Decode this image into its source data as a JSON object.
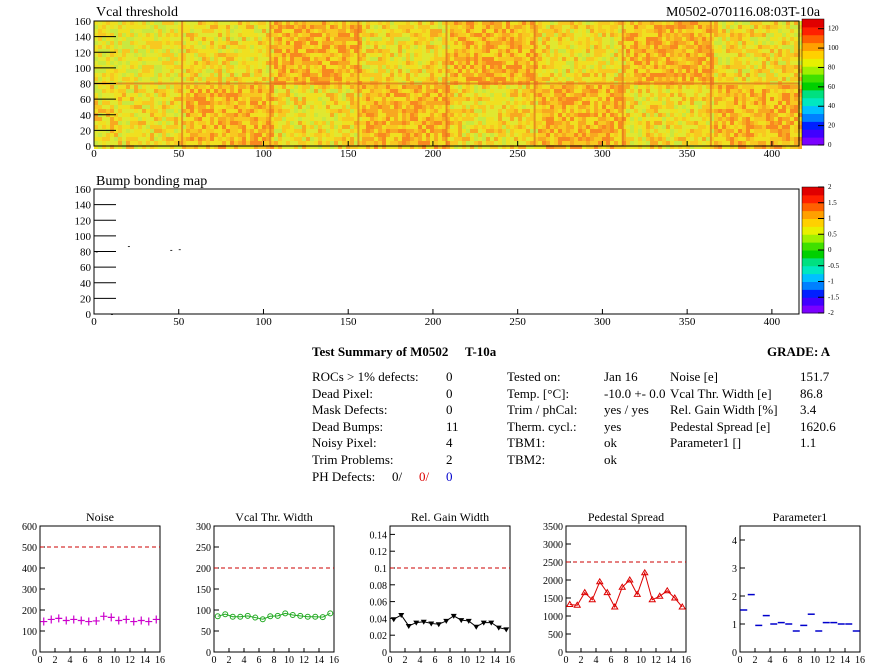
{
  "header": {
    "title": "Vcal threshold",
    "module": "M0502-070116.08:03T-10a"
  },
  "colors": {
    "palette": [
      "#7b00ff",
      "#4000ff",
      "#0020ff",
      "#0080ff",
      "#00c0ff",
      "#00e8c0",
      "#00e080",
      "#00d000",
      "#40e000",
      "#a0f000",
      "#e8f000",
      "#ffd000",
      "#ffa000",
      "#ff6000",
      "#ff2000",
      "#e00000"
    ],
    "noise": "#cc00cc",
    "vcal": "#22aa22",
    "gain": "#000000",
    "pedestal": "#dd0000",
    "param1": "#0000cc",
    "ref_line": "#cc0000"
  },
  "maps": [
    {
      "title": "Vcal threshold",
      "xlim": [
        0,
        416
      ],
      "ylim": [
        0,
        160
      ],
      "xticks": [
        "0",
        "50",
        "100",
        "150",
        "200",
        "250",
        "300",
        "350",
        "400"
      ],
      "yticks": [
        "0",
        "20",
        "40",
        "60",
        "80",
        "100",
        "120",
        "140",
        "160"
      ],
      "zticks": [
        "0",
        "20",
        "40",
        "60",
        "80",
        "100",
        "120"
      ],
      "zlim": [
        0,
        130
      ]
    },
    {
      "title": "Bump bonding map",
      "xlim": [
        0,
        416
      ],
      "ylim": [
        0,
        160
      ],
      "xticks": [
        "0",
        "50",
        "100",
        "150",
        "200",
        "250",
        "300",
        "350",
        "400"
      ],
      "yticks": [
        "0",
        "20",
        "40",
        "60",
        "80",
        "100",
        "120",
        "140",
        "160"
      ],
      "zticks": [
        "-2",
        "-1.5",
        "-1",
        "-0.5",
        "0",
        "0.5",
        "1",
        "1.5",
        "2"
      ],
      "zlim": [
        -2,
        2
      ]
    }
  ],
  "summary": {
    "title": "Test Summary of M0502",
    "subtitle": "T-10a",
    "grade": "GRADE:  A",
    "left": [
      {
        "label": "ROCs > 1% defects:",
        "value": "0"
      },
      {
        "label": "Dead Pixel:",
        "value": "0"
      },
      {
        "label": "Mask Defects:",
        "value": "0"
      },
      {
        "label": "Dead Bumps:",
        "value": "11"
      },
      {
        "label": "Noisy Pixel:",
        "value": "4"
      },
      {
        "label": "Trim Problems:",
        "value": "2"
      }
    ],
    "ph_defects": {
      "label": "PH Defects:",
      "v1": "0/",
      "v2": "0/",
      "v3": "0"
    },
    "middle": [
      {
        "label": "Tested on:",
        "value": "Jan 16"
      },
      {
        "label": "Temp. [°C]:",
        "value": "-10.0 +- 0.0"
      },
      {
        "label": "Trim / phCal:",
        "value": "yes / yes"
      },
      {
        "label": "Therm. cycl.:",
        "value": "yes"
      },
      {
        "label": "TBM1:",
        "value": "ok"
      },
      {
        "label": "TBM2:",
        "value": "ok"
      }
    ],
    "right": [
      {
        "label": "Noise [e]",
        "value": "151.7"
      },
      {
        "label": "Vcal Thr. Width [e]",
        "value": "86.8"
      },
      {
        "label": "Rel. Gain Width [%]",
        "value": "3.4"
      },
      {
        "label": "Pedestal Spread [e]",
        "value": "1620.6"
      },
      {
        "label": "Parameter1 []",
        "value": "1.1"
      }
    ]
  },
  "chart_data": [
    {
      "type": "scatter",
      "title": "Noise",
      "x": [
        0,
        1,
        2,
        3,
        4,
        5,
        6,
        7,
        8,
        9,
        10,
        11,
        12,
        13,
        14,
        15
      ],
      "values": [
        145,
        155,
        160,
        150,
        155,
        150,
        145,
        148,
        170,
        165,
        150,
        155,
        145,
        150,
        145,
        155
      ],
      "ylim": [
        0,
        600
      ],
      "xlim": [
        0,
        16
      ],
      "yticks": [
        "0",
        "100",
        "200",
        "300",
        "400",
        "500",
        "600"
      ],
      "xticks": [
        "0",
        "2",
        "4",
        "6",
        "8",
        "10",
        "12",
        "14",
        "16"
      ],
      "reference": 500,
      "marker": "cross"
    },
    {
      "type": "line",
      "title": "Vcal Thr. Width",
      "x": [
        0,
        1,
        2,
        3,
        4,
        5,
        6,
        7,
        8,
        9,
        10,
        11,
        12,
        13,
        14,
        15
      ],
      "values": [
        85,
        90,
        84,
        84,
        86,
        82,
        78,
        85,
        86,
        92,
        88,
        86,
        84,
        84,
        83,
        92
      ],
      "ylim": [
        0,
        300
      ],
      "xlim": [
        0,
        16
      ],
      "yticks": [
        "0",
        "50",
        "100",
        "150",
        "200",
        "250",
        "300"
      ],
      "xticks": [
        "0",
        "2",
        "4",
        "6",
        "8",
        "10",
        "12",
        "14",
        "16"
      ],
      "reference": 200,
      "marker": "circle"
    },
    {
      "type": "line",
      "title": "Rel. Gain Width",
      "x": [
        0,
        1,
        2,
        3,
        4,
        5,
        6,
        7,
        8,
        9,
        10,
        11,
        12,
        13,
        14,
        15
      ],
      "values": [
        0.039,
        0.044,
        0.031,
        0.035,
        0.036,
        0.034,
        0.033,
        0.037,
        0.043,
        0.038,
        0.037,
        0.03,
        0.035,
        0.035,
        0.029,
        0.027
      ],
      "ylim": [
        0,
        0.15
      ],
      "xlim": [
        0,
        16
      ],
      "yticks": [
        "0",
        "0.02",
        "0.04",
        "0.06",
        "0.08",
        "0.1",
        "0.12",
        "0.14"
      ],
      "xticks": [
        "0",
        "2",
        "4",
        "6",
        "8",
        "10",
        "12",
        "14",
        "16"
      ],
      "reference": 0.1,
      "marker": "tri-down"
    },
    {
      "type": "line",
      "title": "Pedestal Spread",
      "x": [
        0,
        1,
        2,
        3,
        4,
        5,
        6,
        7,
        8,
        9,
        10,
        11,
        12,
        13,
        14,
        15
      ],
      "values": [
        1320,
        1300,
        1650,
        1450,
        1950,
        1650,
        1250,
        1800,
        2000,
        1600,
        2200,
        1450,
        1550,
        1700,
        1500,
        1250
      ],
      "ylim": [
        0,
        3500
      ],
      "xlim": [
        0,
        16
      ],
      "yticks": [
        "0",
        "500",
        "1000",
        "1500",
        "2000",
        "2500",
        "3000",
        "3500"
      ],
      "xticks": [
        "0",
        "2",
        "4",
        "6",
        "8",
        "10",
        "12",
        "14",
        "16"
      ],
      "reference": 2500,
      "marker": "tri-up"
    },
    {
      "type": "scatter",
      "title": "Parameter1",
      "x": [
        0,
        1,
        2,
        3,
        4,
        5,
        6,
        7,
        8,
        9,
        10,
        11,
        12,
        13,
        14,
        15
      ],
      "values": [
        1.5,
        2.05,
        0.95,
        1.3,
        1.0,
        1.05,
        1.0,
        0.75,
        0.95,
        1.35,
        0.75,
        1.05,
        1.05,
        1.0,
        1.0,
        0.75
      ],
      "ylim": [
        0,
        4.5
      ],
      "xlim": [
        0,
        16
      ],
      "yticks": [
        "0",
        "1",
        "2",
        "3",
        "4"
      ],
      "xticks": [
        "0",
        "2",
        "4",
        "6",
        "8",
        "10",
        "12",
        "14",
        "16"
      ],
      "reference": null,
      "marker": "hbar"
    }
  ]
}
